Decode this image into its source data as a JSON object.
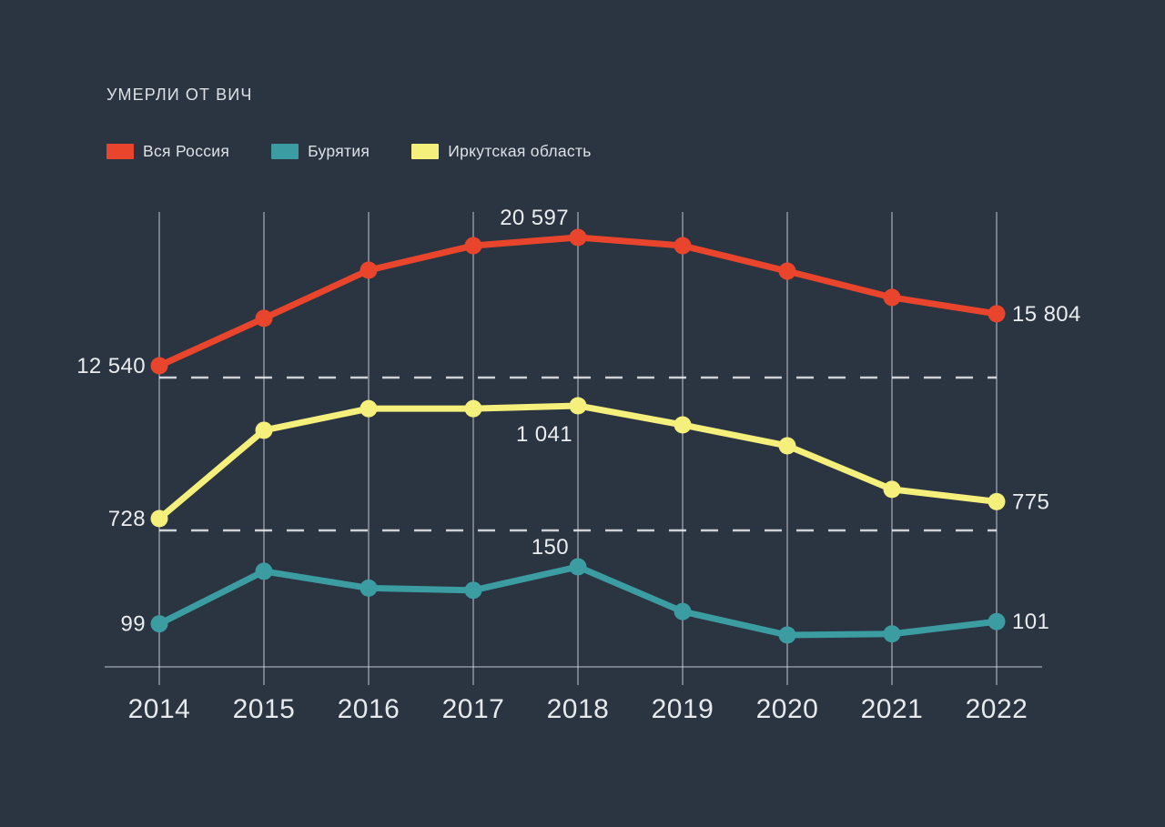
{
  "title": "УМЕРЛИ ОТ ВИЧ",
  "colors": {
    "background": "#2b3441",
    "title_text": "#dce1e5",
    "legend_text": "#dce1e5",
    "value_label_text": "#eaedef",
    "axis_label_text": "#e6eaed",
    "grid_line": "rgba(225,231,236,0.55)",
    "dashed_line": "rgba(235,239,242,0.85)",
    "russia": "#e8452c",
    "buryatia": "#3b9ca1",
    "irkutsk": "#f5ef7b"
  },
  "chart_data": {
    "type": "line",
    "title": "УМЕРЛИ ОТ ВИЧ",
    "categories": [
      "2014",
      "2015",
      "2016",
      "2017",
      "2018",
      "2019",
      "2020",
      "2021",
      "2022"
    ],
    "series": [
      {
        "name": "Вся Россия",
        "color": "#e8452c",
        "values": [
          12540,
          15520,
          18540,
          20080,
          20597,
          20080,
          18480,
          16830,
          15804
        ],
        "value_labels": [
          {
            "category": "2014",
            "text": "12 540",
            "placement": "left"
          },
          {
            "category": "2018",
            "text": "20 597",
            "placement": "above"
          },
          {
            "category": "2022",
            "text": "15 804",
            "placement": "right"
          }
        ],
        "dashed_line_at_first_value": true
      },
      {
        "name": "Бурятия",
        "color": "#3b9ca1",
        "values": [
          99,
          146,
          131,
          129,
          150,
          110,
          89,
          90,
          101
        ],
        "value_labels": [
          {
            "category": "2014",
            "text": "99",
            "placement": "left"
          },
          {
            "category": "2018",
            "text": "150",
            "placement": "above"
          },
          {
            "category": "2022",
            "text": "101",
            "placement": "right"
          }
        ],
        "dashed_line_at_first_value": false
      },
      {
        "name": "Иркутская область",
        "color": "#f5ef7b",
        "values": [
          728,
          973,
          1033,
          1033,
          1041,
          988,
          930,
          809,
          775
        ],
        "value_labels": [
          {
            "category": "2014",
            "text": "728",
            "placement": "left"
          },
          {
            "category": "2018",
            "text": "1 041",
            "placement": "below"
          },
          {
            "category": "2022",
            "text": "775",
            "placement": "right"
          }
        ],
        "dashed_line_at_first_value": true
      }
    ],
    "legend": [
      "Вся Россия",
      "Бурятия",
      "Иркутская область"
    ],
    "legend_position": "top-left",
    "grid": "vertical-only",
    "y_axis": "hidden; each series is drawn on its own scale, anchor values shown as point labels",
    "xlabel": "",
    "ylabel": "",
    "unlabeled_values_estimated": true
  }
}
